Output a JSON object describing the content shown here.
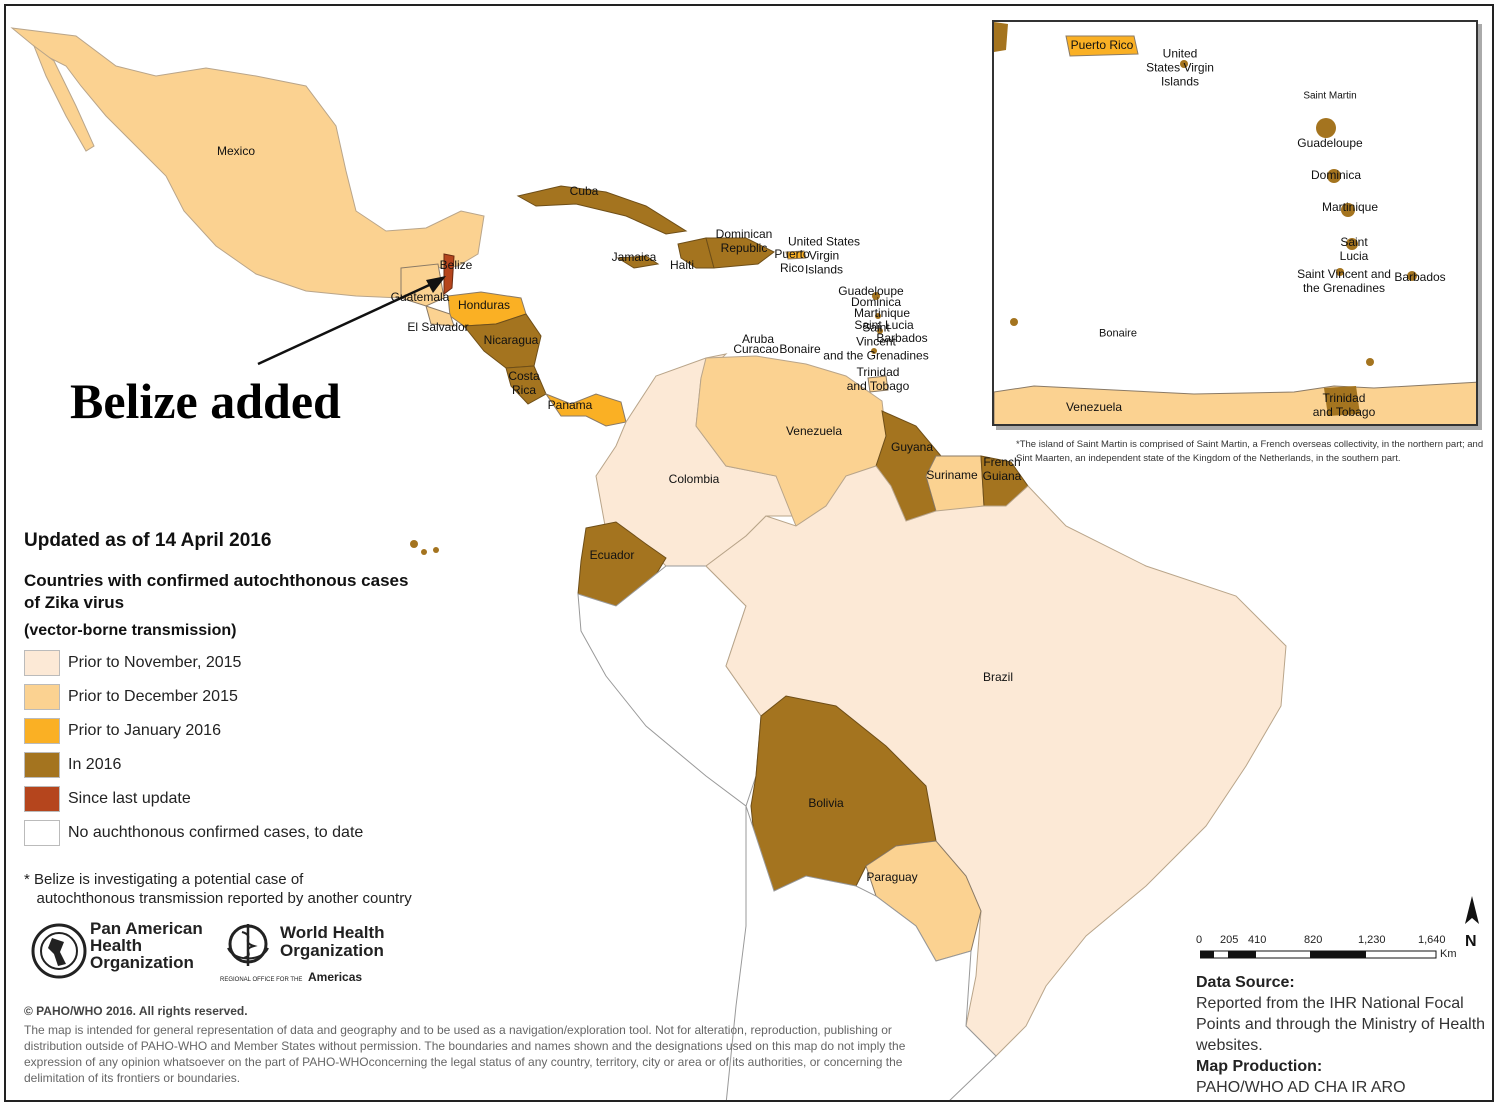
{
  "callout": {
    "text": "Belize added"
  },
  "legend": {
    "updated": "Updated as of 14 April 2016",
    "title": "Countries with confirmed autochthonous cases of Zika virus",
    "subtitle": "(vector-borne transmission)",
    "items": [
      {
        "label": "Prior to November, 2015",
        "color": "#FCE9D6"
      },
      {
        "label": "Prior to December 2015",
        "color": "#FBD291"
      },
      {
        "label": "Prior to January 2016",
        "color": "#FAB024"
      },
      {
        "label": "In 2016",
        "color": "#A4741F"
      },
      {
        "label": "Since last update",
        "color": "#B5451D"
      },
      {
        "label": "No auchthonous confirmed cases, to date",
        "color": "#FFFFFF"
      }
    ]
  },
  "belize_note": "* Belize is investigating a potential case of\n   autochthonous transmission reported by another country",
  "logos": {
    "paho": [
      "Pan American",
      "Health",
      "Organization"
    ],
    "who": [
      "World Health",
      "Organization"
    ],
    "who_small": "REGIONAL OFFICE FOR THE",
    "who_region": "Americas"
  },
  "copyright": "© PAHO/WHO 2016. All rights reserved.",
  "disclaimer": "The map is intended for general representation of data and geography and to be used as a navigation/exploration tool. Not for alteration, reproduction, publishing or distribution outside of PAHO-WHO and Member States without permission. The boundaries and names shown and the designations used on this map do not imply the expression of any opinion whatsoever on the part of PAHO-WHOconcerning the legal status of any country, territory, city or area or of its authorities, or concerning the delimitation of its frontiers or boundaries.",
  "inset_note": "*The island of Saint Martin is comprised of Saint Martin, a French overseas collectivity, in the northern part; and Sint Maarten, an independent state of the Kingdom of the Netherlands, in the southern part.",
  "scale": {
    "ticks": [
      "0",
      "205",
      "410",
      "820",
      "1,230",
      "1,640"
    ],
    "unit": "Km"
  },
  "sources": {
    "data_heading": "Data Source",
    "data_text": "Reported from the IHR National Focal Points and through the Ministry of Health websites.",
    "production_heading": "Map Production",
    "production_text": "PAHO/WHO AD CHA IR ARO"
  },
  "country_labels": [
    "Mexico",
    "Belize",
    "Guatemala",
    "Honduras",
    "El Salvador",
    "Nicaragua",
    "Costa\nRica",
    "Panama",
    "Cuba",
    "Jamaica",
    "Haiti",
    "Dominican\nRepublic",
    "Puerto\nRico",
    "United States\nVirgin\nIslands",
    "Guadeloupe",
    "Dominica",
    "Martinique",
    "Saint\nVincent\nand the Grenadines",
    "Saint Lucia",
    "Barbados",
    "Trinidad\nand Tobago",
    "Aruba",
    "Curacao",
    "Bonaire",
    "Venezuela",
    "Colombia",
    "Guyana",
    "Suriname",
    "French\nGuiana",
    "Ecuador",
    "Brazil",
    "Bolivia",
    "Paraguay"
  ],
  "inset_labels": [
    "Puerto Rico",
    "United\nStates Virgin\nIslands",
    "Saint Martin",
    "Guadeloupe",
    "Dominica",
    "Martinique",
    "Saint\nLucia",
    "Saint Vincent and\nthe Grenadines",
    "Barbados",
    "Bonaire",
    "Venezuela",
    "Trinidad\nand Tobago"
  ]
}
